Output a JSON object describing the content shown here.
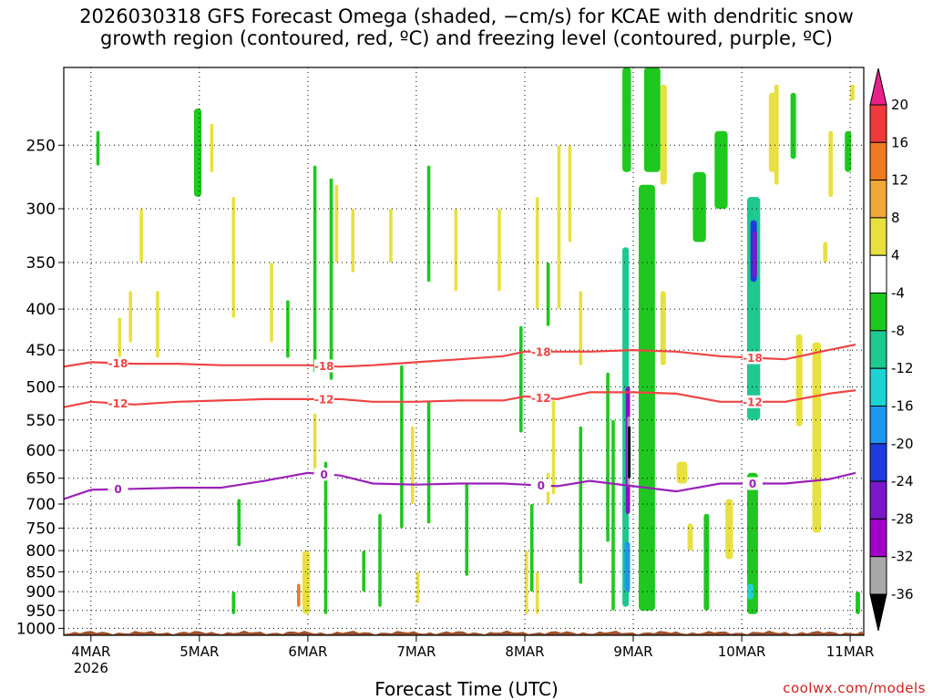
{
  "chart_data": {
    "type": "heatmap",
    "title": "2026030318 GFS Forecast Omega (shaded, −cm/s) for KCAE with dendritic snow\ngrowth region (contoured, red, ºC) and freezing level (contoured, purple, ºC)",
    "xlabel": "Forecast Time (UTC)",
    "ylabel": "",
    "y_axis": {
      "scale": "log-pressure",
      "reversed": true,
      "ylim": [
        1020,
        200
      ],
      "ticks": [
        250,
        300,
        350,
        400,
        450,
        500,
        550,
        600,
        650,
        700,
        750,
        800,
        850,
        900,
        950,
        1000
      ]
    },
    "x_axis": {
      "xlim": [
        "2026-03-03T18",
        "2026-03-11T03"
      ],
      "ticks": [
        {
          "x": "2026-03-04T00",
          "label": "4MAR",
          "sublabel": "2026"
        },
        {
          "x": "2026-03-05T00",
          "label": "5MAR"
        },
        {
          "x": "2026-03-06T00",
          "label": "6MAR"
        },
        {
          "x": "2026-03-07T00",
          "label": "7MAR"
        },
        {
          "x": "2026-03-08T00",
          "label": "8MAR"
        },
        {
          "x": "2026-03-09T00",
          "label": "9MAR"
        },
        {
          "x": "2026-03-10T00",
          "label": "10MAR"
        },
        {
          "x": "2026-03-11T00",
          "label": "11MAR"
        }
      ]
    },
    "grid": true,
    "colorbar": {
      "placement": "right",
      "labels": [
        "20",
        "16",
        "12",
        "8",
        "4",
        "-4",
        "-8",
        "-12",
        "-16",
        "-20",
        "-24",
        "-28",
        "-32",
        "-36"
      ],
      "colors": [
        "#e8218a",
        "#ee3a3a",
        "#f07a20",
        "#f0a838",
        "#e8e040",
        "#ffffff",
        "#1ec81e",
        "#1ec890",
        "#1ed2d2",
        "#1e96f0",
        "#1e3cdc",
        "#7a18c8",
        "#a000c8",
        "#a8a8a8",
        "#000000"
      ]
    },
    "omega_areas": [
      {
        "day": 4.05,
        "days": 0.03,
        "p": [
          240,
          265
        ],
        "value": -6
      },
      {
        "day": 4.25,
        "days": 0.03,
        "p": [
          410,
          470
        ],
        "value": 5
      },
      {
        "day": 4.35,
        "days": 0.03,
        "p": [
          380,
          440
        ],
        "value": 5
      },
      {
        "day": 4.45,
        "days": 0.03,
        "p": [
          300,
          350
        ],
        "value": 5
      },
      {
        "day": 4.6,
        "days": 0.03,
        "p": [
          380,
          460
        ],
        "value": 5
      },
      {
        "day": 4.95,
        "days": 0.07,
        "p": [
          225,
          290
        ],
        "value": -7
      },
      {
        "day": 5.1,
        "days": 0.03,
        "p": [
          235,
          270
        ],
        "value": 5
      },
      {
        "day": 5.3,
        "days": 0.03,
        "p": [
          290,
          410
        ],
        "value": 5
      },
      {
        "day": 5.35,
        "days": 0.03,
        "p": [
          690,
          790
        ],
        "value": -6
      },
      {
        "day": 5.3,
        "days": 0.03,
        "p": [
          900,
          960
        ],
        "value": -6
      },
      {
        "day": 5.65,
        "days": 0.03,
        "p": [
          350,
          440
        ],
        "value": 5
      },
      {
        "day": 5.8,
        "days": 0.03,
        "p": [
          390,
          460
        ],
        "value": -6
      },
      {
        "day": 5.95,
        "days": 0.07,
        "p": [
          800,
          960
        ],
        "value": 7
      },
      {
        "day": 5.9,
        "days": 0.03,
        "p": [
          880,
          940
        ],
        "value": 13
      },
      {
        "day": 6.05,
        "days": 0.03,
        "p": [
          265,
          480
        ],
        "value": -6
      },
      {
        "day": 6.05,
        "days": 0.03,
        "p": [
          540,
          640
        ],
        "value": 5
      },
      {
        "day": 6.15,
        "days": 0.03,
        "p": [
          620,
          960
        ],
        "value": -6
      },
      {
        "day": 6.2,
        "days": 0.03,
        "p": [
          275,
          490
        ],
        "value": -6
      },
      {
        "day": 6.25,
        "days": 0.03,
        "p": [
          280,
          350
        ],
        "value": 5
      },
      {
        "day": 6.4,
        "days": 0.03,
        "p": [
          300,
          360
        ],
        "value": 5
      },
      {
        "day": 6.5,
        "days": 0.03,
        "p": [
          800,
          900
        ],
        "value": -6
      },
      {
        "day": 6.65,
        "days": 0.03,
        "p": [
          720,
          940
        ],
        "value": -6
      },
      {
        "day": 6.75,
        "days": 0.03,
        "p": [
          300,
          350
        ],
        "value": 5
      },
      {
        "day": 6.85,
        "days": 0.03,
        "p": [
          470,
          750
        ],
        "value": -6
      },
      {
        "day": 6.95,
        "days": 0.03,
        "p": [
          560,
          700
        ],
        "value": 5
      },
      {
        "day": 7.0,
        "days": 0.03,
        "p": [
          850,
          930
        ],
        "value": 5
      },
      {
        "day": 7.1,
        "days": 0.03,
        "p": [
          265,
          370
        ],
        "value": -6
      },
      {
        "day": 7.1,
        "days": 0.03,
        "p": [
          520,
          740
        ],
        "value": -6
      },
      {
        "day": 7.35,
        "days": 0.03,
        "p": [
          300,
          380
        ],
        "value": 5
      },
      {
        "day": 7.45,
        "days": 0.03,
        "p": [
          660,
          860
        ],
        "value": -6
      },
      {
        "day": 7.75,
        "days": 0.03,
        "p": [
          300,
          380
        ],
        "value": 5
      },
      {
        "day": 7.95,
        "days": 0.03,
        "p": [
          420,
          570
        ],
        "value": -6
      },
      {
        "day": 8.0,
        "days": 0.03,
        "p": [
          800,
          960
        ],
        "value": 5
      },
      {
        "day": 8.05,
        "days": 0.03,
        "p": [
          700,
          900
        ],
        "value": -6
      },
      {
        "day": 8.1,
        "days": 0.03,
        "p": [
          850,
          960
        ],
        "value": 5
      },
      {
        "day": 8.1,
        "days": 0.03,
        "p": [
          290,
          400
        ],
        "value": 5
      },
      {
        "day": 8.2,
        "days": 0.03,
        "p": [
          640,
          700
        ],
        "value": 5
      },
      {
        "day": 8.25,
        "days": 0.03,
        "p": [
          520,
          680
        ],
        "value": 5
      },
      {
        "day": 8.2,
        "days": 0.03,
        "p": [
          350,
          420
        ],
        "value": -6
      },
      {
        "day": 8.3,
        "days": 0.03,
        "p": [
          250,
          400
        ],
        "value": 5
      },
      {
        "day": 8.4,
        "days": 0.03,
        "p": [
          250,
          330
        ],
        "value": 5
      },
      {
        "day": 8.5,
        "days": 0.03,
        "p": [
          560,
          880
        ],
        "value": -6
      },
      {
        "day": 8.5,
        "days": 0.03,
        "p": [
          380,
          470
        ],
        "value": 5
      },
      {
        "day": 8.75,
        "days": 0.03,
        "p": [
          480,
          780
        ],
        "value": -6
      },
      {
        "day": 8.8,
        "days": 0.03,
        "p": [
          550,
          950
        ],
        "value": -7
      },
      {
        "day": 8.9,
        "days": 0.08,
        "p": [
          200,
          270
        ],
        "value": -6
      },
      {
        "day": 8.9,
        "days": 0.06,
        "p": [
          335,
          940
        ],
        "value": -11
      },
      {
        "day": 9.1,
        "days": 0.15,
        "p": [
          200,
          270
        ],
        "value": -6
      },
      {
        "day": 9.05,
        "days": 0.15,
        "p": [
          280,
          950
        ],
        "value": -7
      },
      {
        "day": 9.25,
        "days": 0.06,
        "p": [
          210,
          280
        ],
        "value": 5
      },
      {
        "day": 9.25,
        "days": 0.05,
        "p": [
          380,
          470
        ],
        "value": 5
      },
      {
        "day": 9.4,
        "days": 0.1,
        "p": [
          620,
          660
        ],
        "value": 5
      },
      {
        "day": 9.5,
        "days": 0.05,
        "p": [
          740,
          800
        ],
        "value": 5
      },
      {
        "day": 9.55,
        "days": 0.12,
        "p": [
          270,
          330
        ],
        "value": -6
      },
      {
        "day": 9.65,
        "days": 0.05,
        "p": [
          720,
          950
        ],
        "value": -6
      },
      {
        "day": 9.75,
        "days": 0.12,
        "p": [
          240,
          300
        ],
        "value": -6
      },
      {
        "day": 9.85,
        "days": 0.07,
        "p": [
          690,
          820
        ],
        "value": 5
      },
      {
        "day": 10.05,
        "days": 0.12,
        "p": [
          290,
          550
        ],
        "value": -11
      },
      {
        "day": 10.05,
        "days": 0.1,
        "p": [
          640,
          960
        ],
        "value": -7
      },
      {
        "day": 10.25,
        "days": 0.08,
        "p": [
          215,
          270
        ],
        "value": 5
      },
      {
        "day": 10.3,
        "days": 0.04,
        "p": [
          210,
          280
        ],
        "value": 5
      },
      {
        "day": 10.45,
        "days": 0.05,
        "p": [
          215,
          260
        ],
        "value": -6
      },
      {
        "day": 10.5,
        "days": 0.06,
        "p": [
          430,
          560
        ],
        "value": 5
      },
      {
        "day": 10.65,
        "days": 0.08,
        "p": [
          440,
          760
        ],
        "value": 5
      },
      {
        "day": 10.75,
        "days": 0.04,
        "p": [
          330,
          350
        ],
        "value": 5
      },
      {
        "day": 10.8,
        "days": 0.04,
        "p": [
          240,
          290
        ],
        "value": 5
      },
      {
        "day": 10.95,
        "days": 0.06,
        "p": [
          240,
          270
        ],
        "value": -6
      },
      {
        "day": 11.0,
        "days": 0.04,
        "p": [
          210,
          220
        ],
        "value": 5
      },
      {
        "day": 11.05,
        "days": 0.04,
        "p": [
          900,
          960
        ],
        "value": -6
      }
    ],
    "omega_core": [
      {
        "day": 8.92,
        "days": 0.05,
        "p": [
          780,
          900
        ],
        "value": -17
      },
      {
        "day": 8.93,
        "days": 0.04,
        "p": [
          500,
          720
        ],
        "value": -25
      },
      {
        "day": 8.94,
        "days": 0.03,
        "p": [
          520,
          700
        ],
        "value": -30
      },
      {
        "day": 8.945,
        "days": 0.02,
        "p": [
          545,
          665
        ],
        "value": -33
      },
      {
        "day": 8.95,
        "days": 0.01,
        "p": [
          560,
          650
        ],
        "value": -38
      },
      {
        "day": 10.08,
        "days": 0.06,
        "p": [
          310,
          370
        ],
        "value": -22
      },
      {
        "day": 10.1,
        "days": 0.04,
        "p": [
          320,
          365
        ],
        "value": -25
      },
      {
        "day": 10.05,
        "days": 0.06,
        "p": [
          880,
          920
        ],
        "value": -13
      }
    ],
    "terrain": {
      "color": "#a0522d",
      "p_top": 1012
    },
    "series": [
      {
        "name": "",
        "label": "-18",
        "color": "#ee4444",
        "x": [
          3.75,
          4.0,
          4.4,
          4.8,
          5.2,
          5.6,
          6.0,
          6.3,
          6.6,
          7.0,
          7.4,
          7.8,
          8.0,
          8.3,
          8.6,
          9.0,
          9.4,
          9.8,
          10.1,
          10.4,
          10.8,
          11.05
        ],
        "y": [
          472,
          466,
          468,
          468,
          470,
          470,
          470,
          472,
          470,
          466,
          462,
          458,
          452,
          452,
          452,
          450,
          452,
          458,
          460,
          462,
          450,
          443
        ]
      },
      {
        "name": "",
        "label": "-12",
        "color": "#ee4444",
        "x": [
          3.75,
          4.0,
          4.4,
          4.8,
          5.2,
          5.6,
          6.0,
          6.3,
          6.6,
          7.0,
          7.4,
          7.8,
          8.0,
          8.3,
          8.6,
          9.0,
          9.4,
          9.8,
          10.1,
          10.4,
          10.8,
          11.05
        ],
        "y": [
          530,
          522,
          526,
          522,
          520,
          518,
          518,
          518,
          522,
          522,
          520,
          520,
          514,
          518,
          508,
          508,
          510,
          522,
          522,
          522,
          510,
          505
        ]
      },
      {
        "name": "",
        "label": "0",
        "color": "#9a20b8",
        "x": [
          3.75,
          4.0,
          4.4,
          4.8,
          5.2,
          5.6,
          6.0,
          6.3,
          6.6,
          7.0,
          7.4,
          7.8,
          8.0,
          8.3,
          8.6,
          9.0,
          9.4,
          9.8,
          10.1,
          10.4,
          10.8,
          11.05
        ],
        "y": [
          690,
          672,
          670,
          668,
          668,
          655,
          640,
          645,
          660,
          662,
          660,
          660,
          662,
          665,
          655,
          665,
          675,
          660,
          660,
          660,
          652,
          640
        ]
      }
    ]
  },
  "credit": "coolwx.com/models"
}
